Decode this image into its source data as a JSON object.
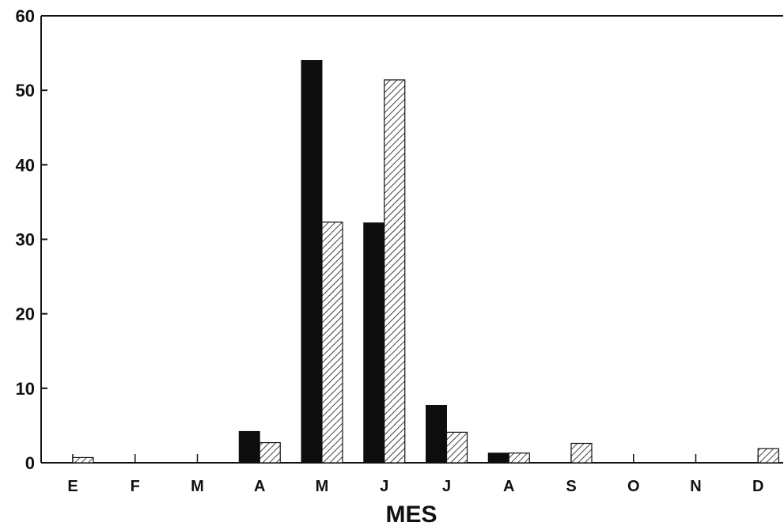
{
  "chart_data": {
    "type": "bar",
    "categories": [
      "E",
      "F",
      "M",
      "A",
      "M",
      "J",
      "J",
      "A",
      "S",
      "O",
      "N",
      "D"
    ],
    "series": [
      {
        "values": [
          0,
          0,
          0,
          4.2,
          54,
          32.2,
          7.7,
          1.3,
          0,
          0,
          0,
          0
        ]
      },
      {
        "values": [
          0.7,
          0,
          0,
          2.7,
          32.3,
          51.4,
          4.1,
          1.3,
          2.6,
          0,
          0,
          1.9
        ]
      }
    ],
    "series_colors": [
      "#0d0d0d",
      "hatched"
    ],
    "xlabel": "MES",
    "ylabel": "",
    "ylim": [
      0,
      60
    ],
    "yticks": [
      "0",
      "10",
      "20",
      "30",
      "40",
      "50",
      "60"
    ],
    "grid": false,
    "legend": false
  }
}
